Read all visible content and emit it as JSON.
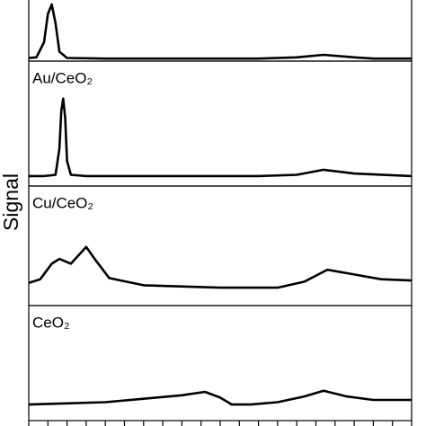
{
  "ylabel": "Signal",
  "chart_data": [
    {
      "type": "line",
      "xlim": [
        0,
        100
      ],
      "ylim": [
        0,
        1
      ],
      "color": "#000000",
      "x": [
        0,
        2,
        4,
        5,
        6,
        7,
        8,
        10,
        20,
        40,
        60,
        70,
        77,
        85,
        90,
        100
      ],
      "values": [
        0.05,
        0.06,
        0.3,
        0.75,
        0.9,
        0.6,
        0.15,
        0.05,
        0.04,
        0.04,
        0.04,
        0.06,
        0.1,
        0.06,
        0.04,
        0.04
      ]
    },
    {
      "type": "line",
      "label": "Au/CeO₂",
      "xlim": [
        0,
        100
      ],
      "ylim": [
        0,
        1
      ],
      "color": "#000000",
      "x": [
        0,
        4,
        7,
        8,
        8.5,
        9,
        9.5,
        10,
        11,
        15,
        30,
        60,
        70,
        77,
        85,
        100
      ],
      "values": [
        0.08,
        0.08,
        0.09,
        0.3,
        0.6,
        0.7,
        0.55,
        0.2,
        0.09,
        0.08,
        0.08,
        0.08,
        0.09,
        0.13,
        0.1,
        0.08
      ]
    },
    {
      "type": "line",
      "label": "Cu/CeO₂",
      "xlim": [
        0,
        100
      ],
      "ylim": [
        0,
        1
      ],
      "color": "#000000",
      "x": [
        0,
        3,
        6,
        8,
        11,
        13,
        15,
        17,
        21,
        30,
        50,
        65,
        72,
        78,
        85,
        92,
        100
      ],
      "values": [
        0.19,
        0.22,
        0.35,
        0.39,
        0.35,
        0.42,
        0.49,
        0.4,
        0.23,
        0.17,
        0.15,
        0.15,
        0.2,
        0.3,
        0.26,
        0.22,
        0.21
      ]
    },
    {
      "type": "line",
      "label": "CeO₂",
      "xlim": [
        0,
        100
      ],
      "ylim": [
        0,
        1
      ],
      "color": "#000000",
      "x": [
        0,
        10,
        20,
        30,
        40,
        46,
        50,
        53,
        58,
        65,
        72,
        77,
        83,
        90,
        100
      ],
      "values": [
        0.14,
        0.15,
        0.16,
        0.19,
        0.22,
        0.25,
        0.2,
        0.14,
        0.14,
        0.16,
        0.21,
        0.26,
        0.21,
        0.18,
        0.18
      ],
      "xticks": [
        0,
        5,
        10,
        15,
        20,
        25,
        30,
        35,
        40,
        45,
        50,
        55,
        60,
        65,
        70,
        75,
        80,
        85,
        90,
        95,
        100
      ]
    }
  ]
}
